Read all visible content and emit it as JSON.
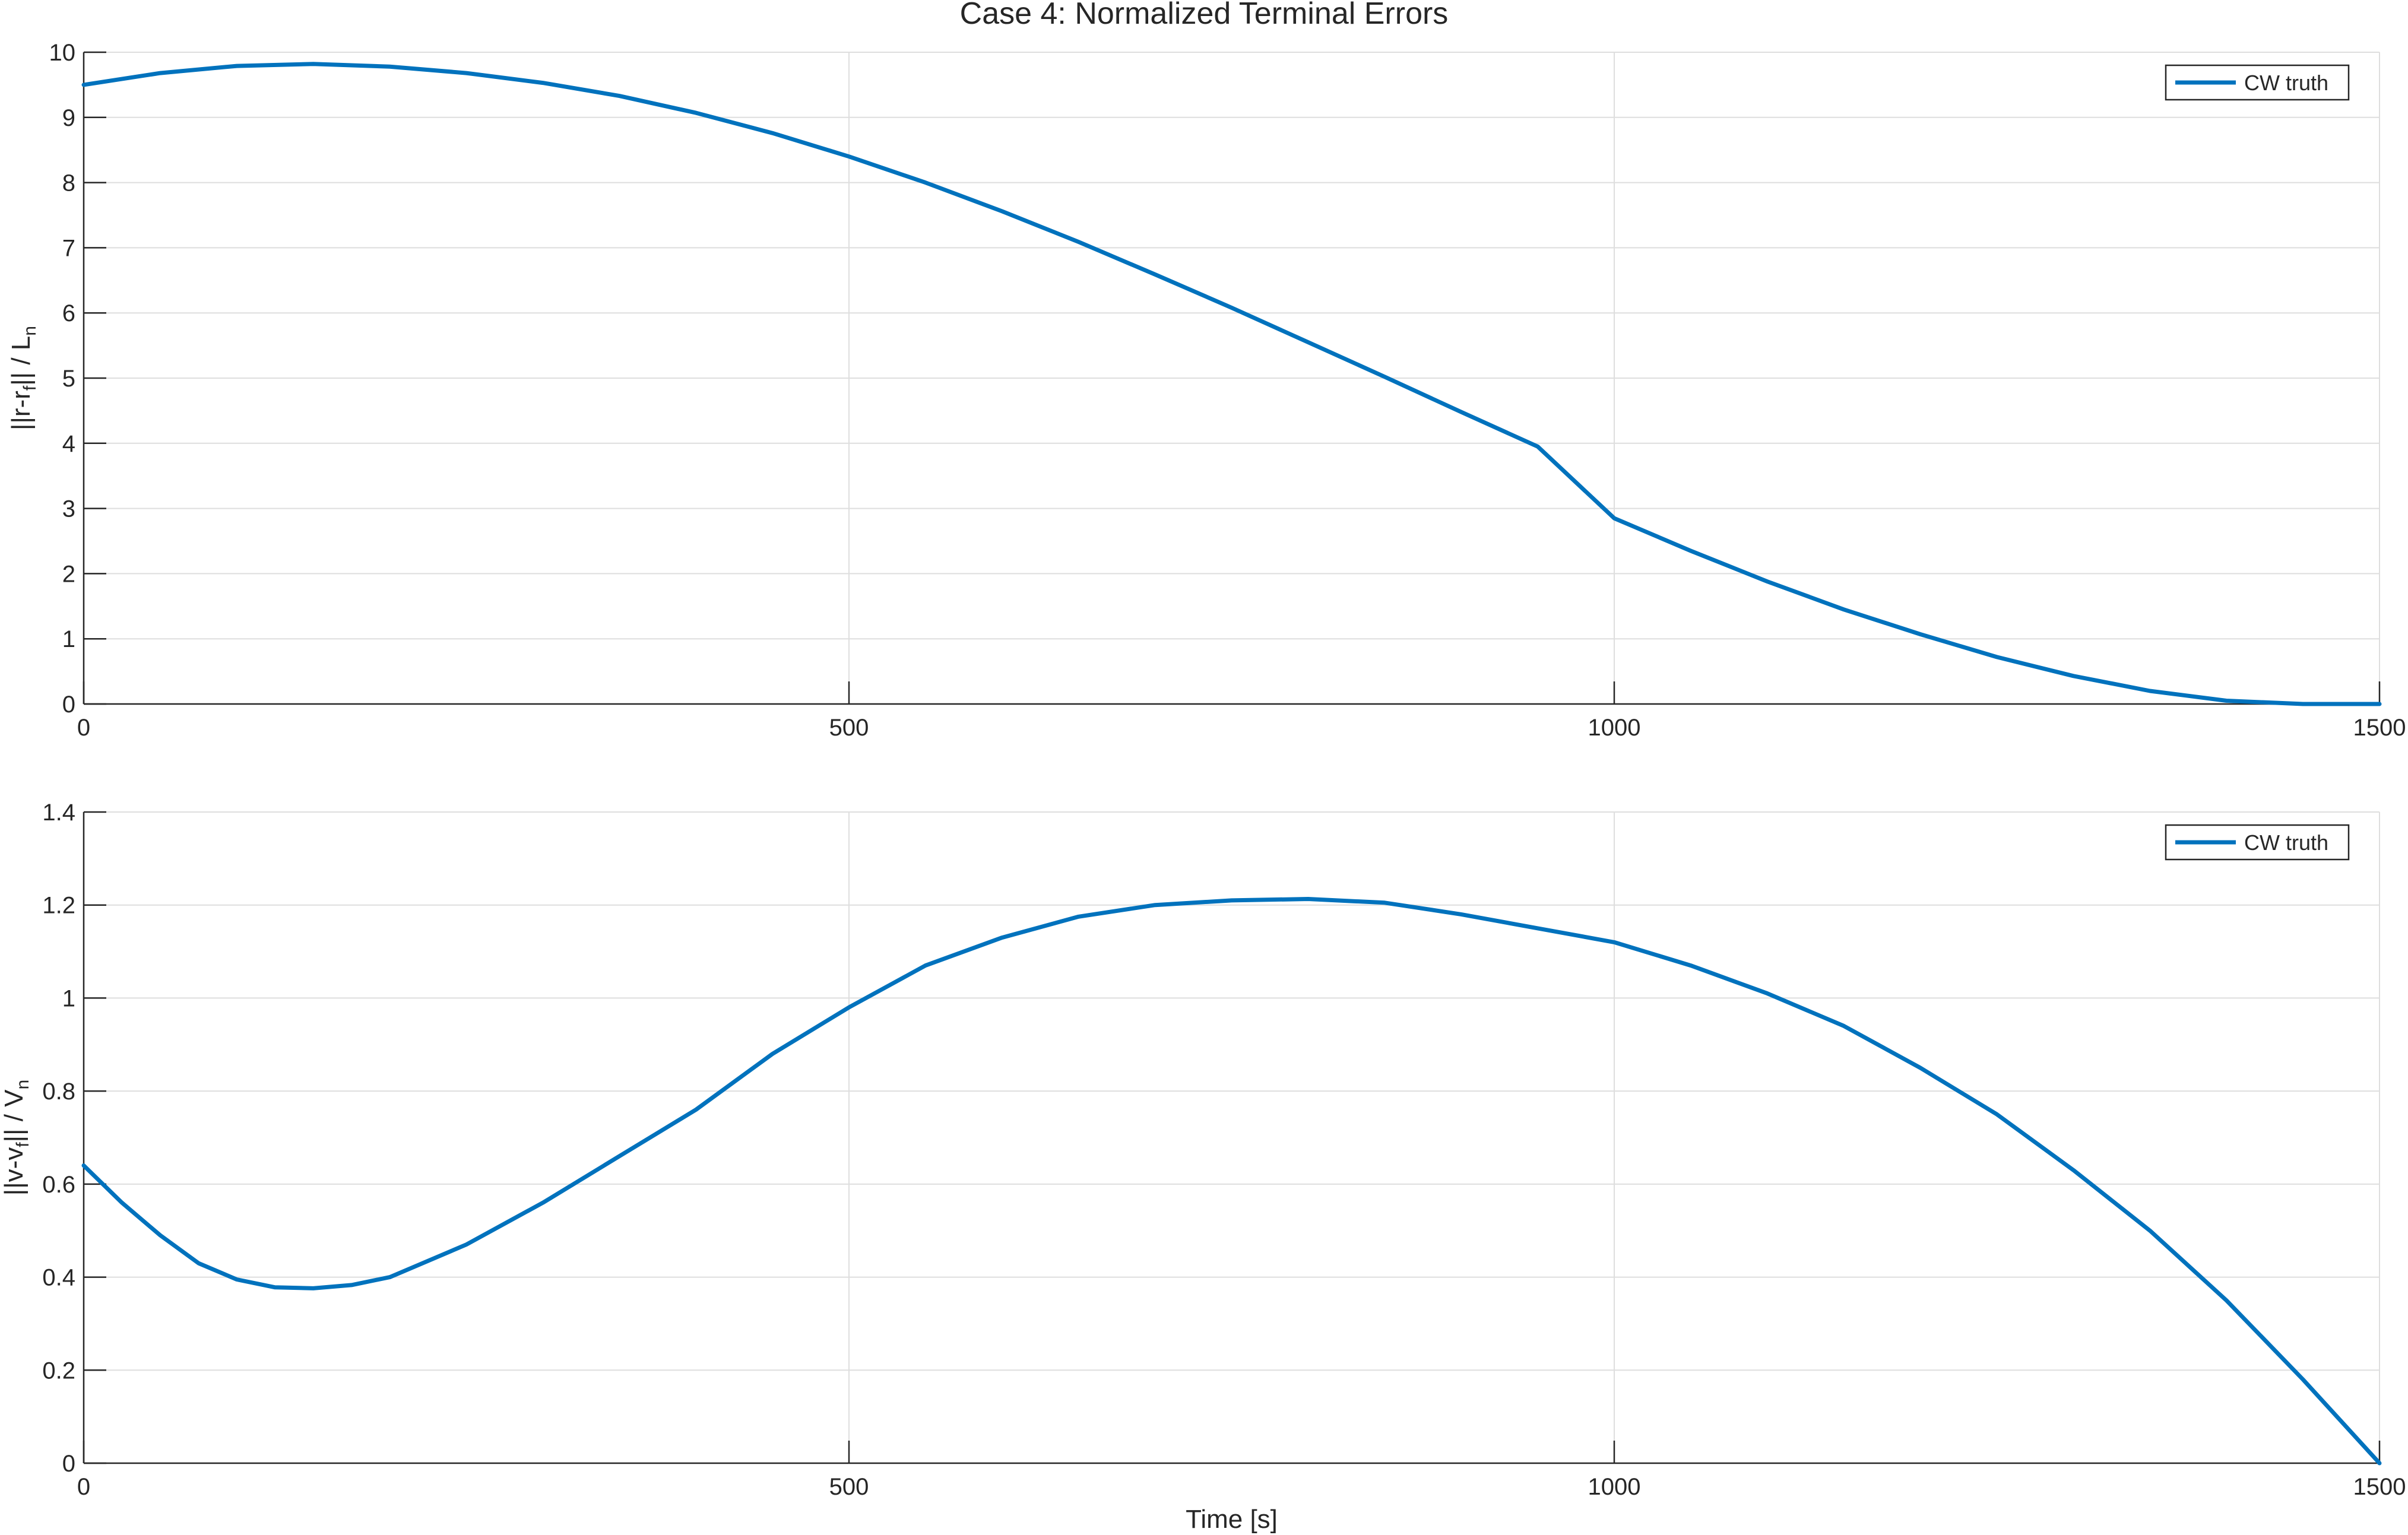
{
  "figure": {
    "title": "Case 4: Normalized Terminal Errors"
  },
  "chart_data": [
    {
      "type": "line",
      "name": "position-error",
      "title": "",
      "xlabel": "",
      "ylabel_parts": [
        "||r-r",
        "f",
        "||  /  L",
        "n"
      ],
      "xlim": [
        0,
        1500
      ],
      "ylim": [
        0,
        10
      ],
      "xticks": [
        0,
        500,
        1000,
        1500
      ],
      "yticks": [
        0,
        1,
        2,
        3,
        4,
        5,
        6,
        7,
        8,
        9,
        10
      ],
      "grid": true,
      "legend_position": "top-right",
      "series": [
        {
          "name": "CW truth",
          "color": "#0072BD",
          "x": [
            0,
            50,
            100,
            150,
            200,
            250,
            300,
            350,
            400,
            450,
            500,
            550,
            600,
            650,
            700,
            750,
            800,
            850,
            900,
            950,
            1000,
            1050,
            1100,
            1150,
            1200,
            1250,
            1300,
            1350,
            1400,
            1450,
            1500
          ],
          "y": [
            9.5,
            9.68,
            9.79,
            9.82,
            9.78,
            9.68,
            9.53,
            9.33,
            9.07,
            8.76,
            8.4,
            8.0,
            7.56,
            7.09,
            6.59,
            6.08,
            5.55,
            5.02,
            4.48,
            3.95,
            2.85,
            2.35,
            1.88,
            1.45,
            1.07,
            0.72,
            0.43,
            0.2,
            0.05,
            0.0,
            0.0
          ]
        }
      ]
    },
    {
      "type": "line",
      "name": "velocity-error",
      "title": "",
      "xlabel": "Time [s]",
      "ylabel_parts": [
        "||v-v",
        "f",
        "||  /  V",
        "n"
      ],
      "xlim": [
        0,
        1500
      ],
      "ylim": [
        0,
        1.4
      ],
      "xticks": [
        0,
        500,
        1000,
        1500
      ],
      "yticks": [
        0,
        0.2,
        0.4,
        0.6,
        0.8,
        1,
        1.2,
        1.4
      ],
      "grid": true,
      "legend_position": "top-right",
      "series": [
        {
          "name": "CW truth",
          "color": "#0072BD",
          "x": [
            0,
            25,
            50,
            75,
            100,
            125,
            150,
            175,
            200,
            250,
            300,
            350,
            400,
            450,
            500,
            550,
            600,
            650,
            700,
            750,
            800,
            850,
            900,
            950,
            1000,
            1050,
            1100,
            1150,
            1200,
            1250,
            1300,
            1350,
            1400,
            1450,
            1500
          ],
          "y": [
            0.64,
            0.56,
            0.49,
            0.43,
            0.395,
            0.378,
            0.376,
            0.383,
            0.4,
            0.47,
            0.56,
            0.66,
            0.76,
            0.88,
            0.98,
            1.07,
            1.13,
            1.175,
            1.2,
            1.21,
            1.213,
            1.205,
            1.18,
            1.15,
            1.12,
            1.07,
            1.01,
            0.94,
            0.85,
            0.75,
            0.63,
            0.5,
            0.35,
            0.18,
            0.0
          ]
        }
      ]
    }
  ]
}
